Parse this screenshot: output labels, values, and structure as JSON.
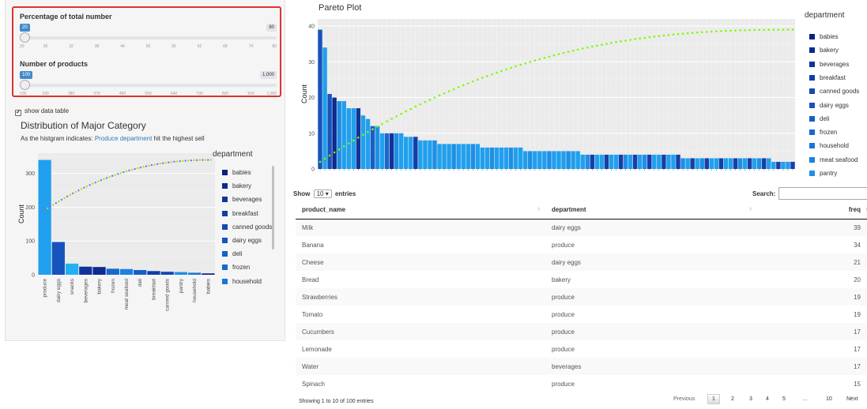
{
  "sidebar": {
    "slider1": {
      "label": "Percentage of total number",
      "value": "20",
      "max": "80",
      "ticks": [
        "20",
        "26",
        "32",
        "38",
        "44",
        "50",
        "56",
        "62",
        "68",
        "74",
        "80"
      ]
    },
    "slider2": {
      "label": "Number of products",
      "value": "100",
      "max": "1,000",
      "ticks": [
        "100",
        "190",
        "280",
        "370",
        "460",
        "550",
        "640",
        "730",
        "820",
        "910",
        "1,000"
      ]
    },
    "show_table": {
      "label": "show data table",
      "checked": true
    },
    "dist_title": "Distribution of Major Category",
    "dist_desc_prefix": "As the histgram indicates: ",
    "dist_desc_highlight": "Produce department",
    "dist_desc_suffix": " hit the highest sell",
    "legend_title": "department",
    "legend_items": [
      "babies",
      "bakery",
      "beverages",
      "breakfast",
      "canned goods",
      "dairy eggs",
      "deli",
      "frozen",
      "household"
    ]
  },
  "pareto": {
    "title": "Pareto Plot",
    "legend_title": "department",
    "legend_items": [
      "babies",
      "bakery",
      "beverages",
      "breakfast",
      "canned goods",
      "dairy eggs",
      "deli",
      "frozen",
      "household",
      "meat seafood",
      "pantry"
    ]
  },
  "colors": {
    "babies": "#0d1f80",
    "bakery": "#0d2a8f",
    "beverages": "#10349c",
    "breakfast": "#123da8",
    "canned goods": "#1548b3",
    "dairy eggs": "#1653bd",
    "deli": "#175ec6",
    "frozen": "#1869cf",
    "household": "#1a75d7",
    "meat seafood": "#1c82df",
    "pantry": "#1e8fe6",
    "produce": "#20a0ee",
    "snacks": "#23b0f3",
    "cumline": "#7cfc00",
    "cumline_dots": "#a05cff"
  },
  "chart_data": [
    {
      "type": "bar",
      "title": "",
      "xlabel": "",
      "ylabel": "Count",
      "ylim": [
        0,
        360
      ],
      "yticks": [
        0,
        100,
        200,
        300
      ],
      "categories": [
        "produce",
        "dairy eggs",
        "snacks",
        "beverages",
        "bakery",
        "frozen",
        "meat seafood",
        "deli",
        "breakfast",
        "canned goods",
        "pantry",
        "household",
        "babies"
      ],
      "values": [
        340,
        97,
        33,
        24,
        23,
        18,
        17,
        14,
        11,
        9,
        8,
        6,
        4
      ],
      "cumulative": {
        "start": 191,
        "end": 340
      },
      "legend": "right",
      "grid": true
    },
    {
      "type": "bar",
      "title": "Pareto Plot",
      "xlabel": "",
      "ylabel": "Count",
      "ylim": [
        0,
        42
      ],
      "yticks": [
        0,
        10,
        20,
        30,
        40
      ],
      "bar_count": 100,
      "values": [
        39,
        34,
        21,
        20,
        19,
        19,
        17,
        17,
        17,
        15,
        14,
        12,
        12,
        10,
        10,
        10,
        10,
        10,
        9,
        9,
        9,
        8,
        8,
        8,
        8,
        7,
        7,
        7,
        7,
        7,
        7,
        7,
        7,
        7,
        6,
        6,
        6,
        6,
        6,
        6,
        6,
        6,
        6,
        5,
        5,
        5,
        5,
        5,
        5,
        5,
        5,
        5,
        5,
        5,
        5,
        4,
        4,
        4,
        4,
        4,
        4,
        4,
        4,
        4,
        4,
        4,
        4,
        4,
        4,
        4,
        4,
        4,
        4,
        4,
        4,
        4,
        3,
        3,
        3,
        3,
        3,
        3,
        3,
        3,
        3,
        3,
        3,
        3,
        3,
        3,
        3,
        3,
        3,
        3,
        3,
        2,
        2,
        2,
        2,
        2
      ],
      "departments": [
        "dairy eggs",
        "produce",
        "dairy eggs",
        "bakery",
        "produce",
        "produce",
        "produce",
        "produce",
        "beverages",
        "produce",
        "produce",
        "deli",
        "produce",
        "produce",
        "frozen",
        "beverages",
        "produce",
        "produce",
        "produce",
        "produce",
        "breakfast",
        "produce",
        "produce",
        "produce",
        "produce",
        "produce",
        "produce",
        "produce",
        "produce",
        "produce",
        "produce",
        "produce",
        "produce",
        "produce",
        "produce",
        "produce",
        "produce",
        "produce",
        "produce",
        "produce",
        "produce",
        "produce",
        "produce",
        "produce",
        "produce",
        "produce",
        "produce",
        "produce",
        "produce",
        "produce",
        "produce",
        "produce",
        "produce",
        "produce",
        "produce",
        "produce",
        "produce",
        "produce",
        "produce",
        "produce",
        "produce",
        "produce",
        "produce",
        "produce",
        "produce",
        "produce",
        "produce",
        "produce",
        "produce",
        "produce",
        "produce",
        "produce",
        "produce",
        "produce",
        "produce",
        "produce",
        "produce",
        "produce",
        "produce",
        "produce",
        "produce",
        "produce",
        "produce",
        "produce",
        "produce",
        "produce",
        "produce",
        "produce",
        "produce",
        "produce",
        "produce",
        "produce",
        "produce",
        "produce",
        "produce",
        "produce",
        "produce",
        "produce",
        "produce",
        "produce"
      ],
      "cumulative": {
        "start": 2,
        "end": 39
      },
      "legend": "right",
      "grid": true
    }
  ],
  "table": {
    "length_label_prefix": "Show",
    "length_value": "10",
    "length_label_suffix": "entries",
    "search_label": "Search:",
    "columns": [
      "product_name",
      "department",
      "freq"
    ],
    "rows": [
      [
        "Milk",
        "dairy eggs",
        "39"
      ],
      [
        "Banana",
        "produce",
        "34"
      ],
      [
        "Cheese",
        "dairy eggs",
        "21"
      ],
      [
        "Bread",
        "bakery",
        "20"
      ],
      [
        "Strawberries",
        "produce",
        "19"
      ],
      [
        "Tomato",
        "produce",
        "19"
      ],
      [
        "Cucumbers",
        "produce",
        "17"
      ],
      [
        "Lemonade",
        "produce",
        "17"
      ],
      [
        "Water",
        "beverages",
        "17"
      ],
      [
        "Spinach",
        "produce",
        "15"
      ]
    ],
    "info": "Showing 1 to 10 of 100 entries",
    "pagination": [
      "Previous",
      "1",
      "2",
      "3",
      "4",
      "5",
      "…",
      "10",
      "Next"
    ]
  }
}
